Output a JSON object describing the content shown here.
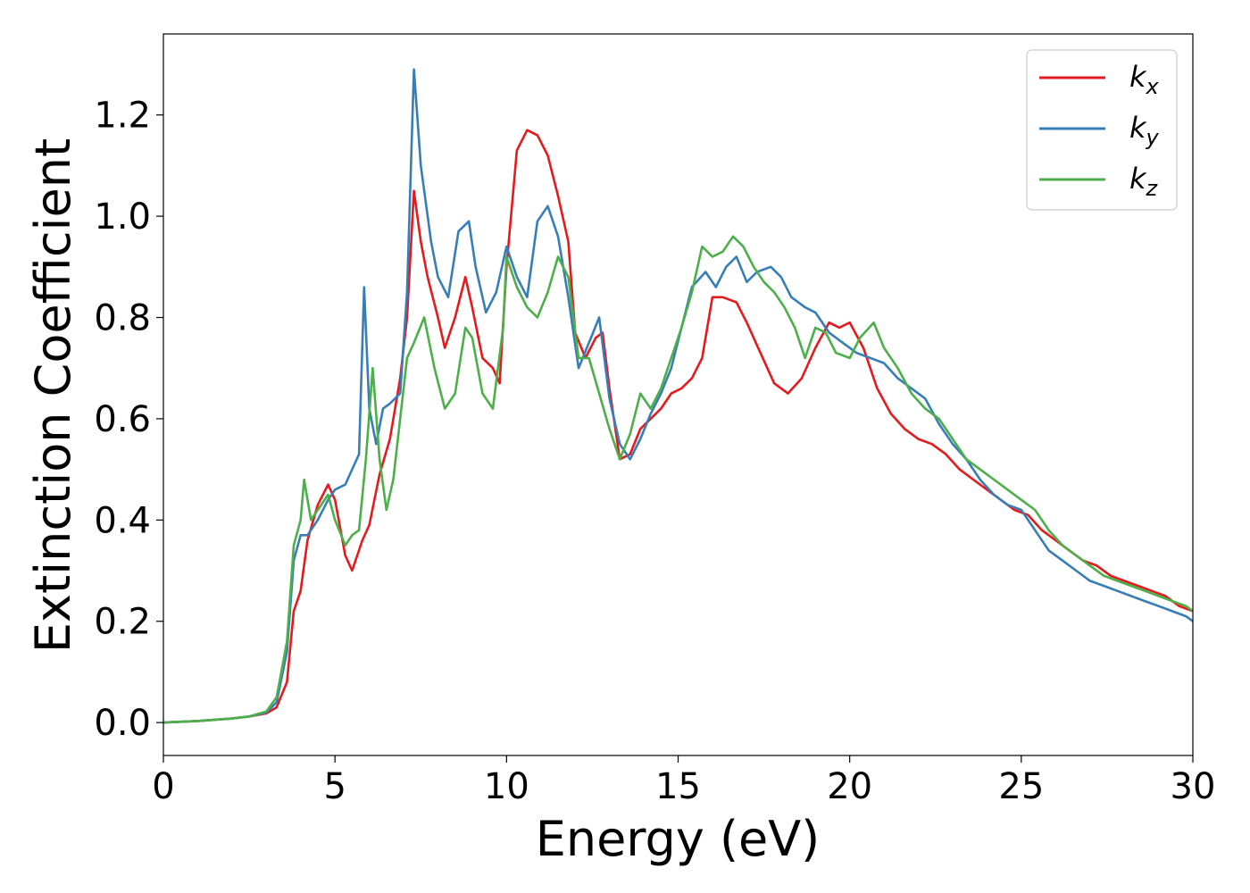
{
  "chart_data": {
    "type": "line",
    "title": "",
    "xlabel": "Energy (eV)",
    "ylabel": "Extinction Coefficient",
    "xlim": [
      0,
      30
    ],
    "ylim": [
      -0.065,
      1.36
    ],
    "xticks": [
      0,
      5,
      10,
      15,
      20,
      25,
      30
    ],
    "yticks": [
      0.0,
      0.2,
      0.4,
      0.6,
      0.8,
      1.0,
      1.2
    ],
    "grid": false,
    "legend_position": "top-right",
    "series": [
      {
        "name": "k",
        "subscript": "x",
        "color": "#e41a1c",
        "x": [
          0,
          1,
          2,
          2.5,
          3,
          3.3,
          3.6,
          3.8,
          4.0,
          4.2,
          4.5,
          4.8,
          5.0,
          5.3,
          5.5,
          5.8,
          6.0,
          6.3,
          6.6,
          6.9,
          7.1,
          7.3,
          7.5,
          7.7,
          8.0,
          8.2,
          8.5,
          8.8,
          9.0,
          9.3,
          9.6,
          9.8,
          10.0,
          10.3,
          10.6,
          10.9,
          11.2,
          11.5,
          11.8,
          12.0,
          12.3,
          12.6,
          12.8,
          13.0,
          13.3,
          13.6,
          13.9,
          14.2,
          14.5,
          14.8,
          15.1,
          15.4,
          15.7,
          16.0,
          16.3,
          16.7,
          17.0,
          17.4,
          17.8,
          18.2,
          18.6,
          19.0,
          19.4,
          19.7,
          20.0,
          20.4,
          20.8,
          21.2,
          21.6,
          22.0,
          22.4,
          22.8,
          23.2,
          23.6,
          24.0,
          24.4,
          24.8,
          25.2,
          25.6,
          26.0,
          26.4,
          26.8,
          27.2,
          27.6,
          28.0,
          28.4,
          28.8,
          29.2,
          29.6,
          30.0
        ],
        "values": [
          0.0,
          0.003,
          0.008,
          0.012,
          0.018,
          0.03,
          0.08,
          0.22,
          0.26,
          0.36,
          0.43,
          0.47,
          0.44,
          0.33,
          0.3,
          0.36,
          0.39,
          0.49,
          0.56,
          0.68,
          0.8,
          1.05,
          0.95,
          0.88,
          0.8,
          0.74,
          0.8,
          0.88,
          0.82,
          0.72,
          0.7,
          0.67,
          0.9,
          1.13,
          1.17,
          1.16,
          1.12,
          1.04,
          0.95,
          0.77,
          0.72,
          0.76,
          0.77,
          0.66,
          0.52,
          0.53,
          0.58,
          0.6,
          0.62,
          0.65,
          0.66,
          0.68,
          0.72,
          0.84,
          0.84,
          0.83,
          0.79,
          0.73,
          0.67,
          0.65,
          0.68,
          0.74,
          0.79,
          0.78,
          0.79,
          0.74,
          0.66,
          0.61,
          0.58,
          0.56,
          0.55,
          0.53,
          0.5,
          0.48,
          0.46,
          0.44,
          0.42,
          0.41,
          0.38,
          0.36,
          0.34,
          0.32,
          0.31,
          0.29,
          0.28,
          0.27,
          0.26,
          0.25,
          0.23,
          0.22
        ]
      },
      {
        "name": "k",
        "subscript": "y",
        "color": "#377eb8",
        "x": [
          0,
          1,
          2,
          2.5,
          3,
          3.3,
          3.6,
          3.8,
          4.0,
          4.2,
          4.5,
          4.8,
          5.0,
          5.3,
          5.5,
          5.7,
          5.85,
          6.0,
          6.2,
          6.4,
          6.6,
          6.9,
          7.1,
          7.3,
          7.5,
          7.8,
          8.0,
          8.3,
          8.6,
          8.9,
          9.1,
          9.4,
          9.7,
          10.0,
          10.3,
          10.6,
          10.9,
          11.2,
          11.5,
          11.8,
          12.1,
          12.4,
          12.7,
          13.0,
          13.3,
          13.6,
          13.9,
          14.2,
          14.5,
          14.8,
          15.1,
          15.4,
          15.8,
          16.1,
          16.4,
          16.7,
          17.0,
          17.3,
          17.7,
          18.0,
          18.3,
          18.7,
          19.0,
          19.4,
          19.8,
          20.2,
          20.6,
          21.0,
          21.4,
          21.8,
          22.2,
          22.6,
          23.0,
          23.4,
          23.8,
          24.2,
          24.6,
          25.0,
          25.4,
          25.8,
          26.2,
          26.6,
          27.0,
          27.4,
          27.8,
          28.2,
          28.6,
          29.0,
          29.4,
          29.8,
          30.0
        ],
        "values": [
          0.0,
          0.003,
          0.008,
          0.012,
          0.02,
          0.04,
          0.14,
          0.32,
          0.37,
          0.37,
          0.4,
          0.44,
          0.46,
          0.47,
          0.5,
          0.53,
          0.86,
          0.62,
          0.55,
          0.62,
          0.63,
          0.65,
          0.85,
          1.29,
          1.1,
          0.95,
          0.88,
          0.84,
          0.97,
          0.99,
          0.9,
          0.81,
          0.85,
          0.94,
          0.88,
          0.84,
          0.99,
          1.02,
          0.96,
          0.84,
          0.7,
          0.75,
          0.8,
          0.64,
          0.55,
          0.52,
          0.56,
          0.61,
          0.65,
          0.7,
          0.78,
          0.86,
          0.89,
          0.86,
          0.9,
          0.92,
          0.87,
          0.89,
          0.9,
          0.88,
          0.84,
          0.82,
          0.81,
          0.77,
          0.75,
          0.73,
          0.72,
          0.71,
          0.68,
          0.66,
          0.64,
          0.59,
          0.55,
          0.52,
          0.48,
          0.45,
          0.43,
          0.42,
          0.38,
          0.34,
          0.32,
          0.3,
          0.28,
          0.27,
          0.26,
          0.25,
          0.24,
          0.23,
          0.22,
          0.21,
          0.2
        ]
      },
      {
        "name": "k",
        "subscript": "z",
        "color": "#4daf4a",
        "x": [
          0,
          1,
          2,
          2.5,
          3,
          3.3,
          3.6,
          3.8,
          4.0,
          4.1,
          4.3,
          4.5,
          4.8,
          5.0,
          5.3,
          5.5,
          5.7,
          5.9,
          6.1,
          6.3,
          6.5,
          6.7,
          6.9,
          7.1,
          7.3,
          7.6,
          7.9,
          8.2,
          8.5,
          8.8,
          9.0,
          9.3,
          9.6,
          9.9,
          10.0,
          10.3,
          10.6,
          10.9,
          11.2,
          11.5,
          11.8,
          12.1,
          12.4,
          12.7,
          13.0,
          13.3,
          13.6,
          13.9,
          14.2,
          14.5,
          14.8,
          15.1,
          15.4,
          15.7,
          16.0,
          16.3,
          16.6,
          16.9,
          17.2,
          17.5,
          17.8,
          18.1,
          18.4,
          18.7,
          19.0,
          19.3,
          19.6,
          20.0,
          20.3,
          20.7,
          21.0,
          21.4,
          21.8,
          22.2,
          22.6,
          23.0,
          23.4,
          23.8,
          24.2,
          24.6,
          25.0,
          25.4,
          25.8,
          26.2,
          26.6,
          27.0,
          27.4,
          27.8,
          28.2,
          28.6,
          29.0,
          29.4,
          29.8,
          30.0
        ],
        "values": [
          0.0,
          0.003,
          0.008,
          0.012,
          0.022,
          0.05,
          0.16,
          0.35,
          0.4,
          0.48,
          0.4,
          0.42,
          0.45,
          0.4,
          0.35,
          0.37,
          0.38,
          0.52,
          0.7,
          0.52,
          0.42,
          0.48,
          0.6,
          0.72,
          0.75,
          0.8,
          0.7,
          0.62,
          0.65,
          0.78,
          0.76,
          0.65,
          0.62,
          0.78,
          0.92,
          0.86,
          0.82,
          0.8,
          0.85,
          0.92,
          0.88,
          0.72,
          0.72,
          0.65,
          0.58,
          0.52,
          0.57,
          0.65,
          0.62,
          0.66,
          0.72,
          0.78,
          0.85,
          0.94,
          0.92,
          0.93,
          0.96,
          0.94,
          0.9,
          0.87,
          0.85,
          0.82,
          0.78,
          0.72,
          0.78,
          0.77,
          0.73,
          0.72,
          0.76,
          0.79,
          0.74,
          0.7,
          0.65,
          0.62,
          0.6,
          0.56,
          0.52,
          0.5,
          0.48,
          0.46,
          0.44,
          0.42,
          0.38,
          0.35,
          0.33,
          0.31,
          0.29,
          0.28,
          0.27,
          0.26,
          0.25,
          0.24,
          0.23,
          0.22
        ]
      }
    ]
  }
}
